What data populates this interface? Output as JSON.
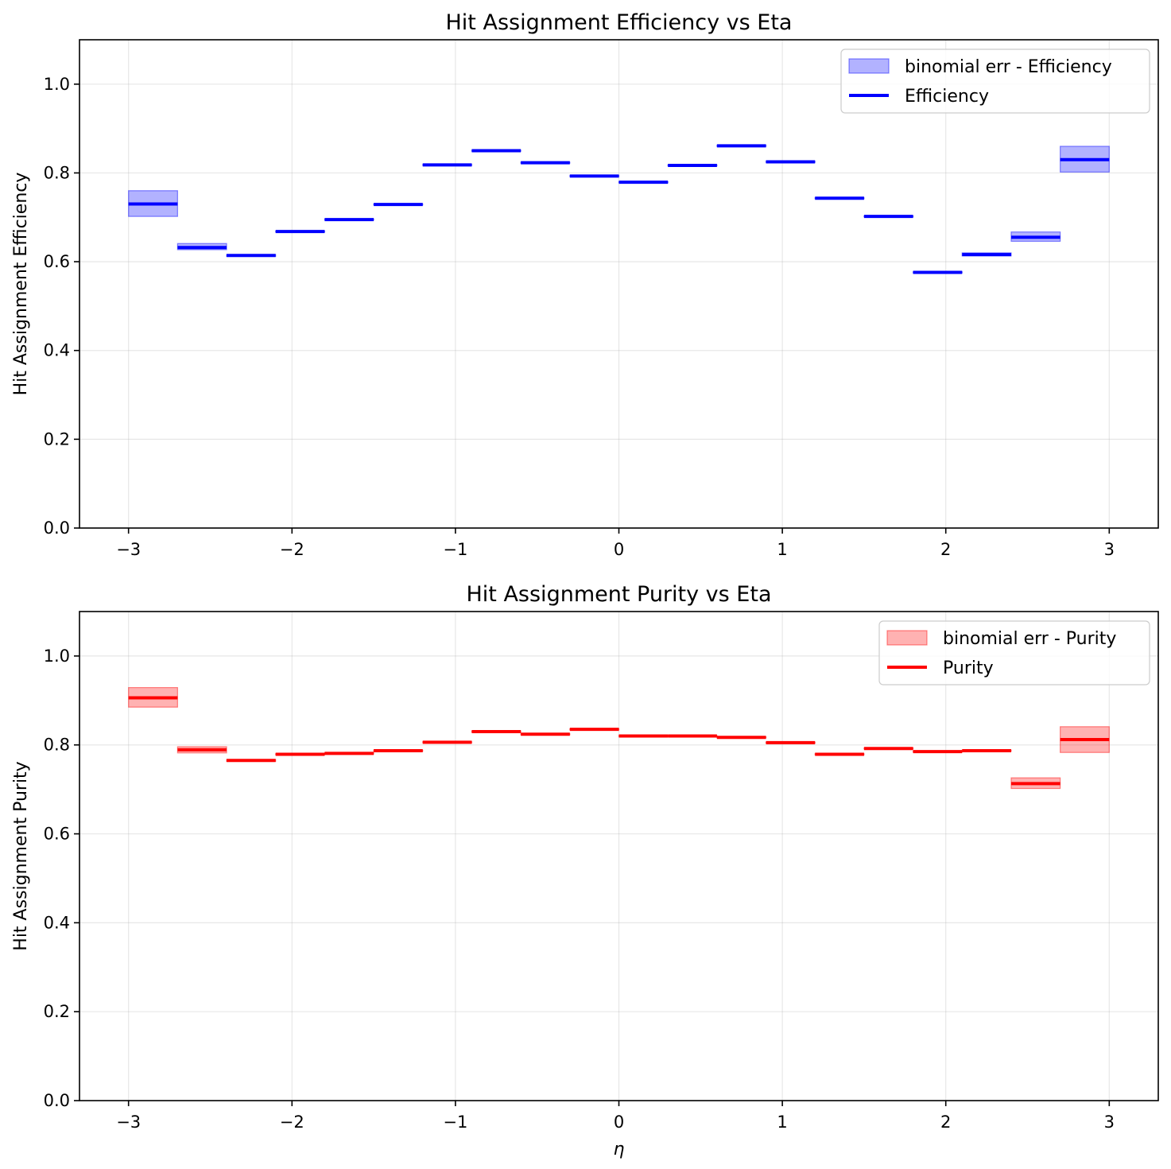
{
  "chart_data": [
    {
      "type": "step-bins",
      "title": "Hit Assignment Efficiency vs Eta",
      "xlabel": "",
      "ylabel": "Hit Assignment Efficiency",
      "xlim": [
        -3.3,
        3.3
      ],
      "ylim": [
        0.0,
        1.1
      ],
      "xticks": [
        -3,
        -2,
        -1,
        0,
        1,
        2,
        3
      ],
      "xtick_labels": [
        "−3",
        "−2",
        "−1",
        "0",
        "1",
        "2",
        "3"
      ],
      "yticks": [
        0.0,
        0.2,
        0.4,
        0.6,
        0.8,
        1.0
      ],
      "ytick_labels": [
        "0.0",
        "0.2",
        "0.4",
        "0.6",
        "0.8",
        "1.0"
      ],
      "grid": true,
      "legend_position": "top-right",
      "bin_edges": [
        -3.0,
        -2.7,
        -2.4,
        -2.1,
        -1.8,
        -1.5,
        -1.2,
        -0.9,
        -0.6,
        -0.3,
        0.0,
        0.3,
        0.6,
        0.9,
        1.2,
        1.5,
        1.8,
        2.1,
        2.4,
        2.7,
        3.0
      ],
      "series": [
        {
          "name": "Efficiency",
          "band_name": "binomial err - Efficiency",
          "color": "#0000ff",
          "band_color": "#0000ff",
          "values": [
            0.73,
            0.632,
            0.614,
            0.668,
            0.695,
            0.729,
            0.818,
            0.85,
            0.823,
            0.793,
            0.779,
            0.817,
            0.861,
            0.825,
            0.743,
            0.702,
            0.576,
            0.616,
            0.655,
            0.83
          ],
          "err_low": [
            0.702,
            0.627,
            0.612,
            0.667,
            0.694,
            0.728,
            0.817,
            0.849,
            0.822,
            0.792,
            0.778,
            0.816,
            0.86,
            0.824,
            0.742,
            0.701,
            0.575,
            0.613,
            0.646,
            0.802
          ],
          "err_high": [
            0.76,
            0.641,
            0.616,
            0.669,
            0.696,
            0.73,
            0.819,
            0.851,
            0.824,
            0.794,
            0.78,
            0.818,
            0.862,
            0.826,
            0.744,
            0.703,
            0.577,
            0.62,
            0.667,
            0.86
          ]
        }
      ]
    },
    {
      "type": "step-bins",
      "title": "Hit Assignment Purity vs Eta",
      "xlabel": "η",
      "ylabel": "Hit Assignment Purity",
      "xlim": [
        -3.3,
        3.3
      ],
      "ylim": [
        0.0,
        1.1
      ],
      "xticks": [
        -3,
        -2,
        -1,
        0,
        1,
        2,
        3
      ],
      "xtick_labels": [
        "−3",
        "−2",
        "−1",
        "0",
        "1",
        "2",
        "3"
      ],
      "yticks": [
        0.0,
        0.2,
        0.4,
        0.6,
        0.8,
        1.0
      ],
      "ytick_labels": [
        "0.0",
        "0.2",
        "0.4",
        "0.6",
        "0.8",
        "1.0"
      ],
      "grid": true,
      "legend_position": "top-right",
      "bin_edges": [
        -3.0,
        -2.7,
        -2.4,
        -2.1,
        -1.8,
        -1.5,
        -1.2,
        -0.9,
        -0.6,
        -0.3,
        0.0,
        0.3,
        0.6,
        0.9,
        1.2,
        1.5,
        1.8,
        2.1,
        2.4,
        2.7,
        3.0
      ],
      "series": [
        {
          "name": "Purity",
          "band_name": "binomial err - Purity",
          "color": "#ff0000",
          "band_color": "#ff0000",
          "values": [
            0.906,
            0.789,
            0.765,
            0.779,
            0.781,
            0.787,
            0.806,
            0.83,
            0.824,
            0.835,
            0.82,
            0.82,
            0.817,
            0.805,
            0.779,
            0.792,
            0.785,
            0.787,
            0.713,
            0.812
          ],
          "err_low": [
            0.885,
            0.782,
            0.763,
            0.778,
            0.78,
            0.786,
            0.805,
            0.829,
            0.823,
            0.834,
            0.819,
            0.819,
            0.816,
            0.804,
            0.778,
            0.791,
            0.784,
            0.786,
            0.702,
            0.783
          ],
          "err_high": [
            0.929,
            0.796,
            0.767,
            0.78,
            0.782,
            0.788,
            0.807,
            0.831,
            0.825,
            0.836,
            0.821,
            0.821,
            0.818,
            0.806,
            0.78,
            0.793,
            0.786,
            0.788,
            0.726,
            0.841
          ]
        }
      ]
    }
  ]
}
